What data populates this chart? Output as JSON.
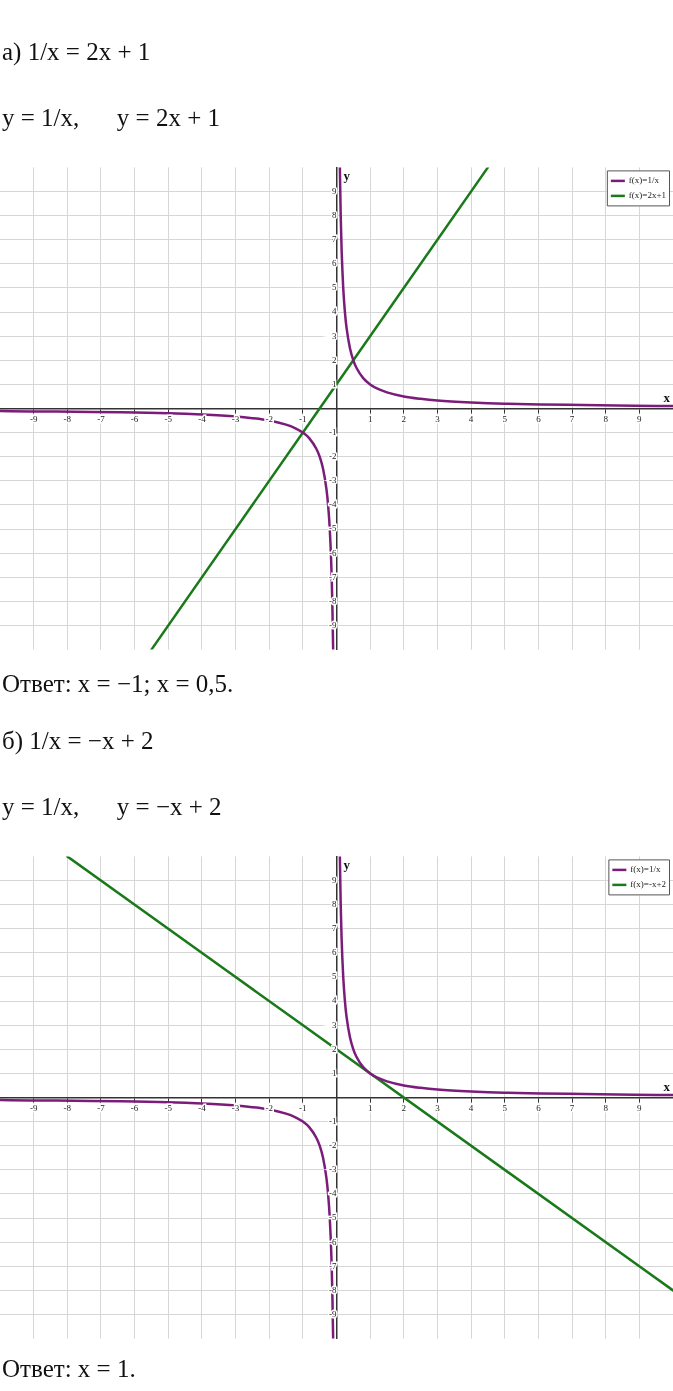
{
  "chart_data": [
    {
      "type": "line",
      "title": "а) 1/x = 2x + 1",
      "subtitle": "y = 1/x,      y = 2x + 1",
      "xlabel": "x",
      "ylabel": "y",
      "series": [
        {
          "name": "f(x)=1/x",
          "color": "#7b1c7b",
          "x": [
            -10,
            -5,
            -4,
            -3,
            -2.5,
            -2,
            -1.5,
            -1.25,
            -1,
            -0.8,
            -0.6,
            -0.5,
            -0.4,
            -0.3,
            -0.25,
            -0.2,
            -0.15,
            -0.125,
            -0.1,
            0,
            0.1,
            0.125,
            0.15,
            0.2,
            0.25,
            0.3,
            0.4,
            0.5,
            0.6,
            0.8,
            1,
            1.25,
            1.5,
            2,
            2.5,
            3,
            4,
            5,
            10
          ],
          "values": [
            -0.1,
            -0.2,
            -0.25,
            -0.33,
            -0.4,
            -0.5,
            -0.67,
            -0.8,
            -1,
            -1.25,
            -1.67,
            -2,
            -2.5,
            -3.33,
            -4,
            -5,
            -6.67,
            -8,
            -10,
            null,
            10,
            8,
            6.67,
            5,
            4,
            3.33,
            2.5,
            2,
            1.67,
            1.25,
            1,
            0.8,
            0.67,
            0.5,
            0.4,
            0.33,
            0.25,
            0.2,
            0.1
          ]
        },
        {
          "name": "f(x)=2x+1",
          "color": "#1a7a1a",
          "x": [
            -5.5,
            4.5
          ],
          "values": [
            -10,
            10
          ]
        }
      ],
      "xlim": [
        -10,
        10
      ],
      "ylim": [
        -10,
        10
      ],
      "xticks": [
        -9,
        -8,
        -7,
        -6,
        -5,
        -4,
        -3,
        -2,
        -1,
        {
          "value": 0,
          "label": null
        },
        1,
        2,
        3,
        4,
        5,
        6,
        7,
        8,
        9
      ],
      "yticks": [
        -9,
        -8,
        -7,
        -6,
        -5,
        -4,
        -3,
        -2,
        -1,
        {
          "value": 0,
          "label": null
        },
        1,
        2,
        3,
        4,
        5,
        6,
        7,
        8,
        9
      ],
      "grid": true,
      "legend": "top right",
      "annotations": [
        "Ответ: x = −1; x = 0,5."
      ]
    },
    {
      "type": "line",
      "title": "б) 1/x = −x + 2",
      "subtitle": "y = 1/x,      y = −x + 2",
      "xlabel": "x",
      "ylabel": "y",
      "series": [
        {
          "name": "f(x)=1/x",
          "color": "#7b1c7b",
          "x": [
            -10,
            -5,
            -4,
            -3,
            -2.5,
            -2,
            -1.5,
            -1.25,
            -1,
            -0.8,
            -0.6,
            -0.5,
            -0.4,
            -0.3,
            -0.25,
            -0.2,
            -0.15,
            -0.125,
            -0.1,
            0,
            0.1,
            0.125,
            0.15,
            0.2,
            0.25,
            0.3,
            0.4,
            0.5,
            0.6,
            0.8,
            1,
            1.25,
            1.5,
            2,
            2.5,
            3,
            4,
            5,
            10
          ],
          "values": [
            -0.1,
            -0.2,
            -0.25,
            -0.33,
            -0.4,
            -0.5,
            -0.67,
            -0.8,
            -1,
            -1.25,
            -1.67,
            -2,
            -2.5,
            -3.33,
            -4,
            -5,
            -6.67,
            -8,
            -10,
            null,
            10,
            8,
            6.67,
            5,
            4,
            3.33,
            2.5,
            2,
            1.67,
            1.25,
            1,
            0.8,
            0.67,
            0.5,
            0.4,
            0.33,
            0.25,
            0.2,
            0.1
          ]
        },
        {
          "name": "f(x)=-x+2",
          "color": "#1a7a1a",
          "x": [
            -8,
            10
          ],
          "values": [
            10,
            -8
          ]
        }
      ],
      "xlim": [
        -10,
        10
      ],
      "ylim": [
        -10,
        10
      ],
      "xticks": [
        -9,
        -8,
        -7,
        -6,
        -5,
        -4,
        -3,
        -2,
        -1,
        {
          "value": 0,
          "label": null
        },
        1,
        2,
        3,
        4,
        5,
        6,
        7,
        8,
        9
      ],
      "yticks": [
        -9,
        -8,
        -7,
        -6,
        -5,
        -4,
        -3,
        -2,
        -1,
        {
          "value": 0,
          "label": null
        },
        1,
        2,
        3,
        4,
        5,
        6,
        7,
        8,
        9
      ],
      "grid": true,
      "legend": "top right",
      "annotations": [
        "Ответ: x = 1."
      ]
    }
  ]
}
